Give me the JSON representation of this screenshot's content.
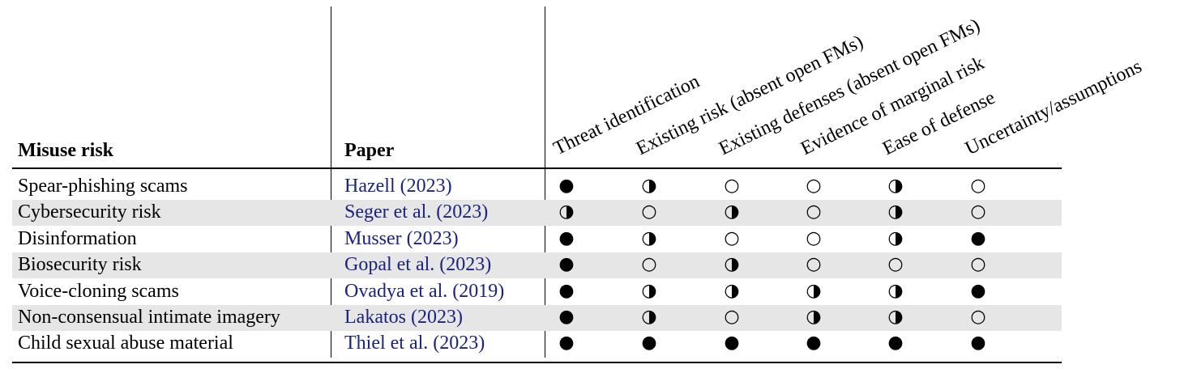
{
  "table": {
    "header": [
      "Misuse risk",
      "Paper",
      "Threat identification",
      "Existing risk (absent open FMs)",
      "Existing defenses (absent open FMs)",
      "Evidence of marginal risk",
      "Ease of defense",
      "Uncertainty/assumptions"
    ],
    "rows": [
      [
        "Spear-phishing scams",
        "Hazell (2023)",
        "●",
        "◑",
        "○",
        "○",
        "◑",
        "○"
      ],
      [
        "Cybersecurity risk",
        "Seger et al. (2023)",
        "◑",
        "○",
        "◑",
        "○",
        "◑",
        "○"
      ],
      [
        "Disinformation",
        "Musser (2023)",
        "●",
        "◑",
        "○",
        "○",
        "◑",
        "●"
      ],
      [
        "Biosecurity risk",
        "Gopal et al. (2023)",
        "●",
        "○",
        "◑",
        "○",
        "○",
        "○"
      ],
      [
        "Voice-cloning scams",
        "Ovadya et al. (2019)",
        "●",
        "◑",
        "◑",
        "◑",
        "◑",
        "●"
      ],
      [
        "Non-consensual intimate imagery",
        "Lakatos (2023)",
        "●",
        "◑",
        "○",
        "◑",
        "◑",
        "○"
      ],
      [
        "Child sexual abuse material",
        "Thiel et al. (2023)",
        "●",
        "●",
        "●",
        "●",
        "●",
        "●"
      ]
    ]
  }
}
